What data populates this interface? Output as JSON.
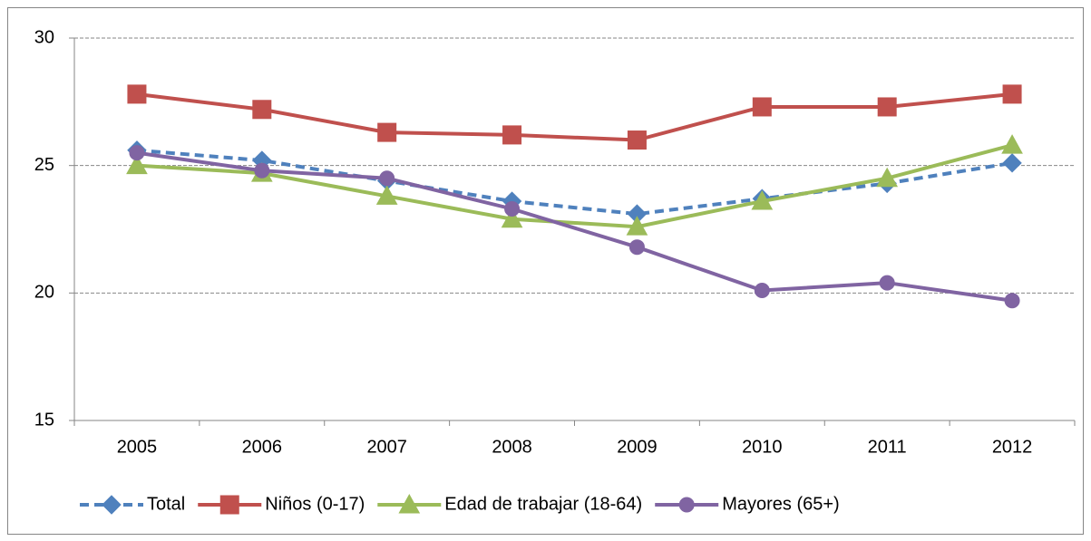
{
  "chart_data": {
    "type": "line",
    "categories": [
      "2005",
      "2006",
      "2007",
      "2008",
      "2009",
      "2010",
      "2011",
      "2012"
    ],
    "series": [
      {
        "name": "Total",
        "color": "#4f81bd",
        "marker": "diamond",
        "dashed": true,
        "values": [
          25.6,
          25.2,
          24.4,
          23.6,
          23.1,
          23.7,
          24.3,
          25.1
        ]
      },
      {
        "name": "Niños (0-17)",
        "color": "#c0504d",
        "marker": "square",
        "dashed": false,
        "values": [
          27.8,
          27.2,
          26.3,
          26.2,
          26.0,
          27.3,
          27.3,
          27.8
        ]
      },
      {
        "name": "Edad de trabajar (18-64)",
        "color": "#9bbb59",
        "marker": "triangle",
        "dashed": false,
        "values": [
          25.0,
          24.7,
          23.8,
          22.9,
          22.6,
          23.6,
          24.5,
          25.8
        ]
      },
      {
        "name": "Mayores (65+)",
        "color": "#8064a2",
        "marker": "circle",
        "dashed": false,
        "values": [
          25.5,
          24.8,
          24.5,
          23.3,
          21.8,
          20.1,
          20.4,
          19.7
        ]
      }
    ],
    "ylim": [
      15,
      30
    ],
    "yticks": [
      15,
      20,
      25,
      30
    ],
    "grid": true,
    "legend": "bottom"
  }
}
